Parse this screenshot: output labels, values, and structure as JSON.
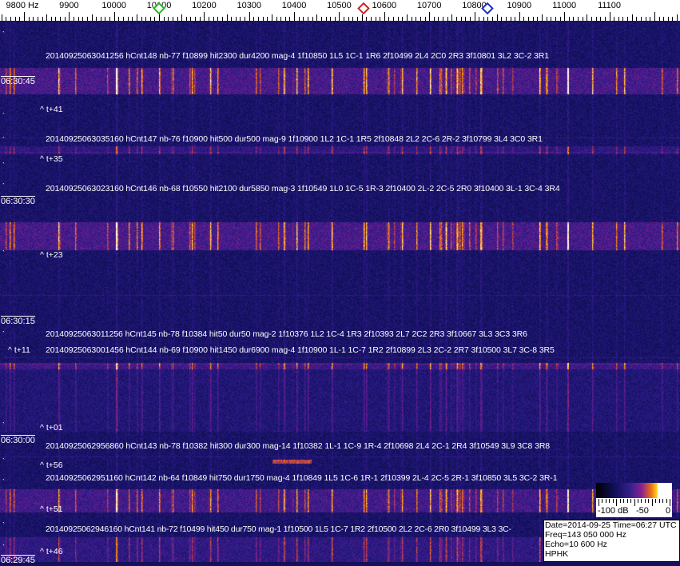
{
  "frequency_axis": {
    "labels": [
      "9800 Hz",
      "9900",
      "10000",
      "10100",
      "10200",
      "10300",
      "10400",
      "10500",
      "10600",
      "10700",
      "10800",
      "10900",
      "11000",
      "11100"
    ],
    "values": [
      9800,
      9900,
      10000,
      10100,
      10200,
      10300,
      10400,
      10500,
      10600,
      10700,
      10800,
      10900,
      11000,
      11100
    ],
    "markers": [
      {
        "name": "green-marker",
        "freq": 10100,
        "color": "#22bb22"
      },
      {
        "name": "red-marker",
        "freq": 10555,
        "color": "#cc2222"
      },
      {
        "name": "blue-marker",
        "freq": 10830,
        "color": "#1a2acc"
      }
    ]
  },
  "time_labels": [
    "06:30:45",
    "06:30:30",
    "06:30:15",
    "06:30:00",
    "06:29:45"
  ],
  "detections": [
    "20140925063041256 hCnt148 nb-77 f10899 hit2300 dur4200 mag-4 1f10850 1L5 1C-1 1R6 2f10499 2L4 2C0 2R3 3f10801 3L2 3C-2 3R1",
    "20140925063035160 hCnt147 nb-76 f10900 hit500 dur500 mag-9 1f10900 1L2 1C-1 1R5 2f10848 2L2 2C-6 2R-2 3f10799 3L4 3C0 3R1",
    "20140925063023160 hCnt146 nb-68 f10550 hit2100 dur5850 mag-3 1f10549 1L0 1C-5 1R-3 2f10400 2L-2 2C-5 2R0 3f10400 3L-1 3C-4 3R4",
    "20140925063011256 hCnt145 nb-78 f10384 hit50 dur50 mag-2 1f10376 1L2 1C-4 1R3 2f10393 2L7 2C2 2R3 3f10667 3L3 3C3 3R6",
    "20140925063001456 hCnt144 nb-69 f10900 hit1450 dur6900 mag-4 1f10900 1L-1 1C-7 1R2 2f10899 2L3 2C-2 2R7 3f10500 3L7 3C-8 3R5",
    "20140925062956860 hCnt143 nb-78 f10382 hit300 dur300 mag-14 1f10382 1L-1 1C-9 1R-4 2f10698 2L4 2C-1 2R4 3f10549 3L9 3C8 3R8",
    "20140925062951160 hCnt142 nb-64 f10849 hit750 dur1750 mag-4 1f10849 1L5 1C-6 1R-1 2f10399 2L-4 2C-5 2R-1 3f10850 3L5 3C-2 3R-1",
    "20140925062946160 hCnt141 nb-72 f10499 hit450 dur750 mag-1 1f10500 1L5 1C-7 1R2 2f10500 2L2 2C-6 2R0 3f10499 3L3 3C-"
  ],
  "offsets": [
    "^ t+41",
    "^ t+35",
    "^ t+23",
    "^ t+11",
    "^ t+01",
    "^ t+56",
    "^ t+51",
    "^ t+46"
  ],
  "colorbar": {
    "labels": [
      "-100 dB",
      "-50",
      "0"
    ],
    "range_db": [
      -100,
      0
    ]
  },
  "info": {
    "date_time": "Date=2014-09-25 Time=06:27 UTC",
    "freq": "Freq=143 050 000 Hz",
    "echo": "Echo=10 600 Hz",
    "station": "HPHK"
  }
}
